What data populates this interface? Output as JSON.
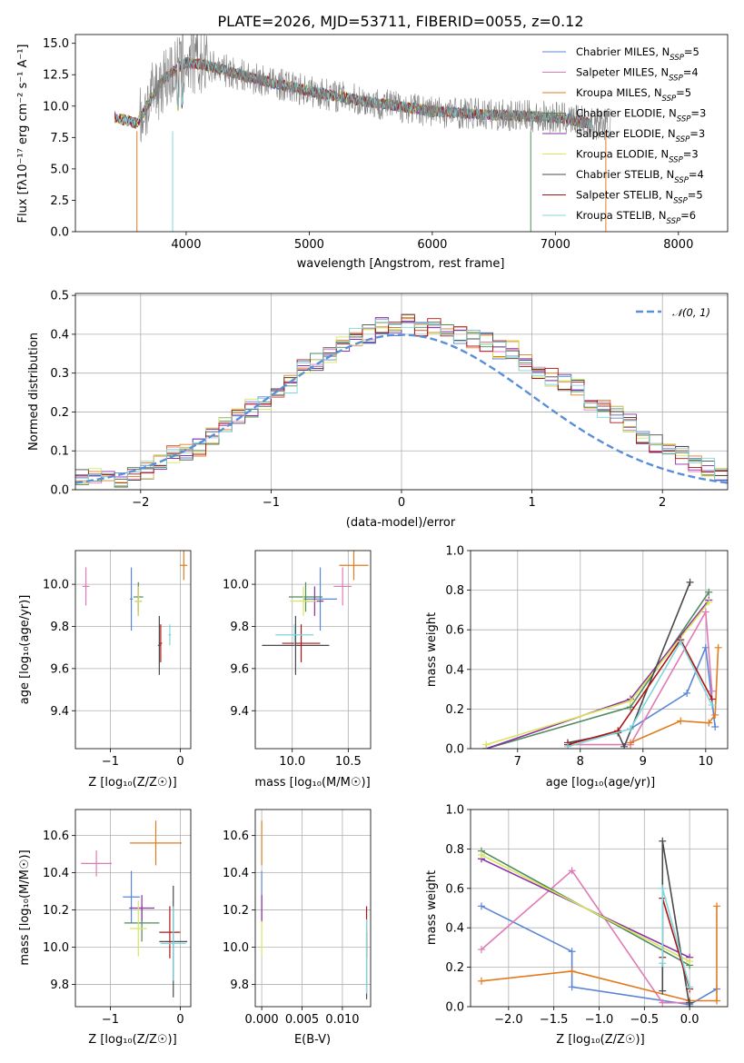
{
  "colors": {
    "chabrier_miles": "#5b85d6",
    "salpeter_miles": "#e07ab6",
    "kroupa_miles": "#e07b1e",
    "chabrier_elodie": "#508a5f",
    "salpeter_elodie": "#8b2ea8",
    "kroupa_elodie": "#d7e65a",
    "chabrier_stelib": "#4a4a4a",
    "salpeter_stelib": "#b01515",
    "kroupa_stelib": "#7fd6dc",
    "gaussian": "#5a8fd8",
    "spectrum": "#808080"
  },
  "chart_data": [
    {
      "id": "spectrum",
      "type": "line",
      "title": "PLATE=2026, MJD=53711, FIBERID=0055, z=0.12",
      "xlabel": "wavelength [Angstrom, rest frame]",
      "ylabel": "Flux [fλ10⁻¹⁷ erg cm⁻² s⁻¹ A⁻¹]",
      "xlim": [
        3100,
        8400
      ],
      "ylim": [
        0,
        15.7
      ],
      "xticks": [
        4000,
        5000,
        6000,
        7000,
        8000
      ],
      "yticks": [
        0.0,
        2.5,
        5.0,
        7.5,
        10.0,
        12.5,
        15.0
      ],
      "xtick_labels": [
        "4000",
        "5000",
        "6000",
        "7000",
        "8000"
      ],
      "ytick_labels": [
        "0.0",
        "2.5",
        "5.0",
        "7.5",
        "10.0",
        "12.5",
        "15.0"
      ],
      "legend_position": "upper right",
      "data_trend": {
        "x": [
          3400,
          3600,
          3800,
          4000,
          4200,
          4500,
          5000,
          5500,
          6000,
          6500,
          7000,
          7300
        ],
        "y": [
          9.2,
          8.6,
          12.0,
          13.5,
          13.2,
          12.3,
          11.2,
          10.3,
          9.6,
          9.3,
          9.1,
          8.6
        ]
      },
      "series": [
        {
          "name": "Chabrier MILES, Nₛₛₚ=5",
          "legend_main": "Chabrier MILES, N",
          "legend_sub": "SSP",
          "legend_tail": "=5"
        },
        {
          "name": "Salpeter MILES, Nₛₛₚ=4",
          "legend_main": "Salpeter MILES, N",
          "legend_sub": "SSP",
          "legend_tail": "=4"
        },
        {
          "name": "Kroupa MILES, Nₛₛₚ=5",
          "legend_main": "Kroupa MILES, N",
          "legend_sub": "SSP",
          "legend_tail": "=5"
        },
        {
          "name": "Chabrier ELODIE, Nₛₛₚ=3",
          "legend_main": "Chabrier ELODIE, N",
          "legend_sub": "SSP",
          "legend_tail": "=3"
        },
        {
          "name": "Salpeter ELODIE, Nₛₛₚ=3",
          "legend_main": "Salpeter ELODIE, N",
          "legend_sub": "SSP",
          "legend_tail": "=3"
        },
        {
          "name": "Kroupa ELODIE, Nₛₛₚ=3",
          "legend_main": "Kroupa ELODIE, N",
          "legend_sub": "SSP",
          "legend_tail": "=3"
        },
        {
          "name": "Chabrier STELIB, Nₛₛₚ=4",
          "legend_main": "Chabrier STELIB, N",
          "legend_sub": "SSP",
          "legend_tail": "=4"
        },
        {
          "name": "Salpeter STELIB, Nₛₛₚ=5",
          "legend_main": "Salpeter STELIB, N",
          "legend_sub": "SSP",
          "legend_tail": "=5"
        },
        {
          "name": "Kroupa STELIB, Nₛₛₚ=6",
          "legend_main": "Kroupa STELIB, N",
          "legend_sub": "SSP",
          "legend_tail": "=6"
        }
      ]
    },
    {
      "id": "residuals",
      "type": "bar",
      "xlabel": "(data-model)/error",
      "ylabel": "Normed distribution",
      "xlim": [
        -2.5,
        2.5
      ],
      "ylim": [
        0,
        0.505
      ],
      "xticks": [
        -2,
        -1,
        0,
        1,
        2
      ],
      "xtick_labels": [
        "−2",
        "−1",
        "0",
        "1",
        "2"
      ],
      "yticks": [
        0.0,
        0.1,
        0.2,
        0.3,
        0.4,
        0.5
      ],
      "ytick_labels": [
        "0.0",
        "0.1",
        "0.2",
        "0.3",
        "0.4",
        "0.5"
      ],
      "grid": true,
      "legend_position": "upper right",
      "reference_curve": {
        "name": "𝒩(0, 1)",
        "mean": 0,
        "sigma": 1
      },
      "bin_edges_from": -2.5,
      "bin_width": 0.1,
      "histogram_envelope": [
        0.03,
        0.03,
        0.03,
        0.03,
        0.04,
        0.05,
        0.07,
        0.09,
        0.1,
        0.11,
        0.14,
        0.17,
        0.19,
        0.21,
        0.22,
        0.25,
        0.27,
        0.31,
        0.33,
        0.35,
        0.37,
        0.39,
        0.4,
        0.42,
        0.42,
        0.43,
        0.41,
        0.42,
        0.41,
        0.4,
        0.39,
        0.38,
        0.36,
        0.36,
        0.33,
        0.31,
        0.29,
        0.28,
        0.26,
        0.23,
        0.21,
        0.19,
        0.17,
        0.14,
        0.12,
        0.11,
        0.09,
        0.07,
        0.06,
        0.04
      ]
    },
    {
      "id": "age_vs_Z",
      "type": "scatter",
      "xlabel": "Z [log₁₀(Z/Z☉)]",
      "ylabel": "age  [log₁₀(age/yr)]",
      "xlim": [
        -1.5,
        0.15
      ],
      "ylim": [
        9.22,
        10.16
      ],
      "xticks": [
        -1,
        0
      ],
      "xtick_labels": [
        "−1",
        "0"
      ],
      "yticks": [
        9.4,
        9.6,
        9.8,
        10.0
      ],
      "ytick_labels": [
        "9.4",
        "9.6",
        "9.8",
        "10.0"
      ],
      "points": [
        {
          "series": "chabrier_miles",
          "x": -0.7,
          "xerr": 0.02,
          "y": 9.93,
          "yerr": 0.15
        },
        {
          "series": "salpeter_miles",
          "x": -1.35,
          "xerr": 0.05,
          "y": 9.99,
          "yerr": 0.09
        },
        {
          "series": "kroupa_miles",
          "x": 0.05,
          "xerr": 0.05,
          "y": 10.09,
          "yerr": 0.07
        },
        {
          "series": "chabrier_elodie",
          "x": -0.6,
          "xerr": 0.07,
          "y": 9.94,
          "yerr": 0.07
        },
        {
          "series": "salpeter_elodie",
          "x": -0.6,
          "xerr": 0.05,
          "y": 9.92,
          "yerr": 0.07
        },
        {
          "series": "kroupa_elodie",
          "x": -0.6,
          "xerr": 0.05,
          "y": 9.92,
          "yerr": 0.07
        },
        {
          "series": "chabrier_stelib",
          "x": -0.3,
          "xerr": 0.02,
          "y": 9.71,
          "yerr": 0.14
        },
        {
          "series": "salpeter_stelib",
          "x": -0.28,
          "xerr": 0.02,
          "y": 9.72,
          "yerr": 0.09
        },
        {
          "series": "kroupa_stelib",
          "x": -0.15,
          "xerr": 0.02,
          "y": 9.76,
          "yerr": 0.05
        }
      ]
    },
    {
      "id": "age_vs_mass",
      "type": "scatter",
      "xlabel": "mass [log₁₀(M/M☉)]",
      "xlim": [
        9.67,
        10.7
      ],
      "ylim": [
        9.22,
        10.16
      ],
      "xticks": [
        10.0,
        10.5
      ],
      "xtick_labels": [
        "10.0",
        "10.5"
      ],
      "yticks": [
        9.4,
        9.6,
        9.8,
        10.0
      ],
      "ytick_labels": [
        "9.4",
        "9.6",
        "9.8",
        "10.0"
      ],
      "points": [
        {
          "series": "chabrier_miles",
          "x": 10.25,
          "xerr": 0.15,
          "y": 9.93,
          "yerr": 0.15
        },
        {
          "series": "salpeter_miles",
          "x": 10.45,
          "xerr": 0.08,
          "y": 9.99,
          "yerr": 0.09
        },
        {
          "series": "kroupa_miles",
          "x": 10.55,
          "xerr": 0.13,
          "y": 10.09,
          "yerr": 0.07
        },
        {
          "series": "chabrier_elodie",
          "x": 10.12,
          "xerr": 0.15,
          "y": 9.94,
          "yerr": 0.07
        },
        {
          "series": "salpeter_elodie",
          "x": 10.2,
          "xerr": 0.08,
          "y": 9.92,
          "yerr": 0.07
        },
        {
          "series": "kroupa_elodie",
          "x": 10.1,
          "xerr": 0.12,
          "y": 9.92,
          "yerr": 0.07
        },
        {
          "series": "chabrier_stelib",
          "x": 10.03,
          "xerr": 0.3,
          "y": 9.71,
          "yerr": 0.14
        },
        {
          "series": "salpeter_stelib",
          "x": 10.08,
          "xerr": 0.17,
          "y": 9.72,
          "yerr": 0.09
        },
        {
          "series": "kroupa_stelib",
          "x": 10.02,
          "xerr": 0.17,
          "y": 9.76,
          "yerr": 0.05
        }
      ]
    },
    {
      "id": "mass_weight_vs_age",
      "type": "line",
      "xlabel": "age  [log₁₀(age/yr)]",
      "ylabel": "mass weight",
      "xlim": [
        6.25,
        10.35
      ],
      "ylim": [
        0.0,
        1.0
      ],
      "xticks": [
        7,
        8,
        9,
        10
      ],
      "xtick_labels": [
        "7",
        "8",
        "9",
        "10"
      ],
      "yticks": [
        0.0,
        0.2,
        0.4,
        0.6,
        0.8,
        1.0
      ],
      "ytick_labels": [
        "0.0",
        "0.2",
        "0.4",
        "0.6",
        "0.8",
        "1.0"
      ],
      "series": [
        {
          "key": "chabrier_miles",
          "x": [
            8.8,
            9.7,
            10.0,
            10.15
          ],
          "y": [
            0.1,
            0.28,
            0.51,
            0.11
          ]
        },
        {
          "key": "salpeter_miles",
          "x": [
            7.8,
            8.8,
            10.0,
            10.1
          ],
          "y": [
            0.02,
            0.02,
            0.69,
            0.29
          ]
        },
        {
          "key": "kroupa_miles",
          "x": [
            8.8,
            9.6,
            10.05,
            10.15,
            10.2
          ],
          "y": [
            0.03,
            0.14,
            0.13,
            0.17,
            0.51
          ]
        },
        {
          "key": "chabrier_elodie",
          "x": [
            6.5,
            8.8,
            10.05
          ],
          "y": [
            0.0,
            0.21,
            0.79
          ]
        },
        {
          "key": "salpeter_elodie",
          "x": [
            6.5,
            8.8,
            10.05
          ],
          "y": [
            0.0,
            0.25,
            0.75
          ]
        },
        {
          "key": "kroupa_elodie",
          "x": [
            6.5,
            8.8,
            10.05
          ],
          "y": [
            0.02,
            0.24,
            0.74
          ]
        },
        {
          "key": "chabrier_stelib",
          "x": [
            7.8,
            8.6,
            8.7,
            9.75
          ],
          "y": [
            0.03,
            0.08,
            0.01,
            0.84
          ]
        },
        {
          "key": "salpeter_stelib",
          "x": [
            7.8,
            8.6,
            9.6,
            10.1
          ],
          "y": [
            0.02,
            0.09,
            0.55,
            0.25
          ]
        },
        {
          "key": "kroupa_stelib",
          "x": [
            7.8,
            8.8,
            9.6,
            10.1
          ],
          "y": [
            0.01,
            0.1,
            0.54,
            0.22
          ]
        }
      ]
    },
    {
      "id": "mass_vs_Z",
      "type": "scatter",
      "xlabel": "Z [log₁₀(Z/Z☉)]",
      "ylabel": "mass [log₁₀(M/M☉)]",
      "xlim": [
        -1.5,
        0.15
      ],
      "ylim": [
        9.68,
        10.74
      ],
      "xticks": [
        -1,
        0
      ],
      "xtick_labels": [
        "−1",
        "0"
      ],
      "yticks": [
        9.8,
        10.0,
        10.2,
        10.4,
        10.6
      ],
      "ytick_labels": [
        "9.8",
        "10.0",
        "10.2",
        "10.4",
        "10.6"
      ],
      "points": [
        {
          "series": "chabrier_miles",
          "x": -0.7,
          "xerr": 0.12,
          "y": 10.27,
          "yerr": 0.14
        },
        {
          "series": "salpeter_miles",
          "x": -1.2,
          "xerr": 0.22,
          "y": 10.45,
          "yerr": 0.07
        },
        {
          "series": "kroupa_miles",
          "x": -0.35,
          "xerr": 0.37,
          "y": 10.56,
          "yerr": 0.12
        },
        {
          "series": "chabrier_elodie",
          "x": -0.55,
          "xerr": 0.25,
          "y": 10.13,
          "yerr": 0.1
        },
        {
          "series": "salpeter_elodie",
          "x": -0.55,
          "xerr": 0.18,
          "y": 10.21,
          "yerr": 0.07
        },
        {
          "series": "kroupa_elodie",
          "x": -0.6,
          "xerr": 0.12,
          "y": 10.1,
          "yerr": 0.15
        },
        {
          "series": "chabrier_stelib",
          "x": -0.1,
          "xerr": 0.2,
          "y": 10.03,
          "yerr": 0.3
        },
        {
          "series": "salpeter_stelib",
          "x": -0.15,
          "xerr": 0.15,
          "y": 10.08,
          "yerr": 0.14
        },
        {
          "series": "kroupa_stelib",
          "x": -0.1,
          "xerr": 0.18,
          "y": 10.02,
          "yerr": 0.2
        }
      ]
    },
    {
      "id": "mass_vs_ebv",
      "type": "scatter",
      "xlabel": "E(B-V)",
      "xlim": [
        -0.0008,
        0.0135
      ],
      "ylim": [
        9.68,
        10.74
      ],
      "xticks": [
        0.0,
        0.005,
        0.01
      ],
      "xtick_labels": [
        "0.000",
        "0.005",
        "0.010"
      ],
      "yticks": [
        9.8,
        10.0,
        10.2,
        10.4,
        10.6
      ],
      "ytick_labels": [
        "9.8",
        "10.0",
        "10.2",
        "10.4",
        "10.6"
      ],
      "points": [
        {
          "series": "chabrier_miles",
          "x": 0.0,
          "xerr": 0,
          "y": 10.27,
          "yerr": 0.14
        },
        {
          "series": "kroupa_miles",
          "x": 0.0,
          "xerr": 0,
          "y": 10.56,
          "yerr": 0.12
        },
        {
          "series": "kroupa_elodie",
          "x": 0.0,
          "xerr": 0,
          "y": 10.1,
          "yerr": 0.15
        },
        {
          "series": "salpeter_elodie",
          "x": 0.0,
          "xerr": 0,
          "y": 10.21,
          "yerr": 0.07
        },
        {
          "series": "chabrier_stelib",
          "x": 0.013,
          "xerr": 0,
          "y": 9.9,
          "yerr": 0.18
        },
        {
          "series": "salpeter_stelib",
          "x": 0.013,
          "xerr": 0,
          "y": 10.08,
          "yerr": 0.14
        },
        {
          "series": "kroupa_stelib",
          "x": 0.013,
          "xerr": 0,
          "y": 9.95,
          "yerr": 0.2
        }
      ]
    },
    {
      "id": "mass_weight_vs_Z",
      "type": "line",
      "xlabel": "Z [log₁₀(Z/Z☉)]",
      "ylabel": "mass weight",
      "xlim": [
        -2.42,
        0.42
      ],
      "ylim": [
        0.0,
        1.0
      ],
      "xticks": [
        -2.0,
        -1.5,
        -1.0,
        -0.5,
        0.0
      ],
      "xtick_labels": [
        "−2.0",
        "−1.5",
        "−1.0",
        "−0.5",
        "0.0"
      ],
      "yticks": [
        0.0,
        0.2,
        0.4,
        0.6,
        0.8,
        1.0
      ],
      "ytick_labels": [
        "0.0",
        "0.2",
        "0.4",
        "0.6",
        "0.8",
        "1.0"
      ],
      "series": [
        {
          "key": "chabrier_miles",
          "x": [
            -2.3,
            -1.3,
            -1.3,
            0.0,
            0.3
          ],
          "y": [
            0.51,
            0.28,
            0.1,
            0.01,
            0.09
          ]
        },
        {
          "key": "salpeter_miles",
          "x": [
            -2.3,
            -1.3,
            -0.3,
            0.0
          ],
          "y": [
            0.29,
            0.69,
            0.02,
            0.02
          ]
        },
        {
          "key": "kroupa_miles",
          "x": [
            -2.3,
            -1.3,
            0.0,
            0.3,
            0.3
          ],
          "y": [
            0.13,
            0.18,
            0.03,
            0.03,
            0.51
          ]
        },
        {
          "key": "chabrier_elodie",
          "x": [
            -2.3,
            0.0
          ],
          "y": [
            0.79,
            0.21
          ]
        },
        {
          "key": "salpeter_elodie",
          "x": [
            -2.3,
            0.0
          ],
          "y": [
            0.75,
            0.25
          ]
        },
        {
          "key": "kroupa_elodie",
          "x": [
            -2.3,
            0.0
          ],
          "y": [
            0.77,
            0.23
          ]
        },
        {
          "key": "chabrier_stelib",
          "x": [
            -0.3,
            -0.3,
            0.0,
            0.0
          ],
          "y": [
            0.08,
            0.84,
            0.0,
            0.02
          ]
        },
        {
          "key": "salpeter_stelib",
          "x": [
            -0.3,
            -0.3,
            0.0
          ],
          "y": [
            0.25,
            0.55,
            0.09
          ]
        },
        {
          "key": "kroupa_stelib",
          "x": [
            -0.3,
            -0.3,
            0.0
          ],
          "y": [
            0.22,
            0.6,
            0.1
          ]
        }
      ]
    }
  ]
}
